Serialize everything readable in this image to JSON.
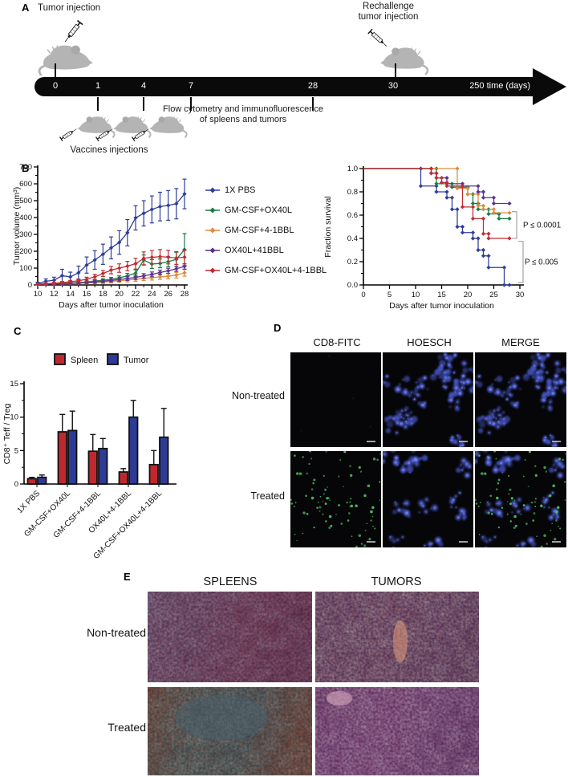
{
  "panel_a": {
    "label": "A",
    "tumor_injection": "Tumor injection",
    "rechallenge": [
      "Rechallenge",
      "tumor injection"
    ],
    "vaccines": "Vaccines injections",
    "flow": [
      "Flow cytometry and immunofluorescence",
      "of spleens and tumors"
    ],
    "timeline": {
      "ticks": [
        "0",
        "1",
        "4",
        "7",
        "28",
        "30"
      ],
      "end": "250 time (days)"
    }
  },
  "panel_b": {
    "label": "B"
  },
  "panel_c": {
    "label": "C"
  },
  "panel_d": {
    "label": "D",
    "columns": [
      "CD8-FITC",
      "HOESCH",
      "MERGE"
    ],
    "rows": [
      "Non-treated",
      "Treated"
    ],
    "colors": {
      "background": "#060608",
      "nuclei_blue": "#4656c8",
      "fitc_green": "#4fbf63",
      "scalebar": "#bdbdbd"
    }
  },
  "panel_e": {
    "label": "E",
    "columns": [
      "SPLEENS",
      "TUMORS"
    ],
    "rows": [
      "Non-treated",
      "Treated"
    ],
    "palettes": {
      "spleen_nontreated": {
        "base": [
          "#857a92",
          "#7b5f77",
          "#84465c",
          "#6e3148"
        ],
        "fine": "#2f1d3e",
        "coarse": "#cabbd2",
        "accent": "#9c3040"
      },
      "tumor_nontreated": {
        "base": [
          "#6b3e6d",
          "#7a4573",
          "#5c3263"
        ],
        "fine": "#2a1438",
        "coarse": "#cfd4dc",
        "accent": "#e09a78"
      },
      "spleen_treated": {
        "base": [
          "#8a3d2c",
          "#566a6d",
          "#49616a",
          "#8a3a2c"
        ],
        "fine": "#1f3238",
        "coarse": "#b9c4c2",
        "accent": "#9e3b1c"
      },
      "tumor_treated": {
        "base": [
          "#7e4a7c",
          "#8f5585",
          "#643a68"
        ],
        "fine": "#331341",
        "coarse": "#ead9e6",
        "accent": "#c77ba0"
      }
    }
  },
  "chart_data": [
    {
      "id": "tumor_volume",
      "type": "line",
      "xlabel": "Days after tumor inoculation",
      "ylabel": "Tumor volume (mm³)",
      "xlim": [
        10,
        28
      ],
      "ylim": [
        0,
        700
      ],
      "xticks": [
        10,
        12,
        14,
        16,
        18,
        20,
        22,
        24,
        26,
        28
      ],
      "yticks": [
        0,
        100,
        200,
        300,
        400,
        500,
        600,
        700
      ],
      "x": [
        10,
        11,
        12,
        13,
        14,
        15,
        16,
        17,
        18,
        19,
        20,
        21,
        22,
        23,
        24,
        25,
        26,
        27,
        28
      ],
      "series": [
        {
          "name": "1X PBS",
          "color": "#2e3d99",
          "values": [
            8,
            22,
            28,
            55,
            48,
            72,
            118,
            148,
            182,
            220,
            252,
            310,
            398,
            425,
            448,
            465,
            472,
            482,
            540
          ],
          "errors": [
            8,
            14,
            18,
            38,
            28,
            40,
            48,
            55,
            60,
            65,
            70,
            78,
            72,
            75,
            80,
            85,
            88,
            90,
            88
          ]
        },
        {
          "name": "GM-CSF+OX40L",
          "color": "#197c45",
          "values": [
            4,
            5,
            7,
            9,
            11,
            14,
            18,
            23,
            28,
            34,
            42,
            54,
            70,
            148,
            124,
            128,
            138,
            152,
            210
          ],
          "errors": [
            2,
            2,
            3,
            4,
            4,
            5,
            7,
            8,
            9,
            11,
            12,
            15,
            20,
            30,
            26,
            26,
            30,
            42,
            95
          ]
        },
        {
          "name": "GM-CSF+4-1BBL",
          "color": "#dd8c3c",
          "values": [
            4,
            5,
            6,
            7,
            8,
            10,
            12,
            14,
            17,
            21,
            25,
            29,
            34,
            39,
            43,
            48,
            52,
            58,
            72
          ],
          "errors": [
            2,
            2,
            3,
            3,
            4,
            5,
            6,
            7,
            8,
            9,
            10,
            11,
            12,
            13,
            14,
            15,
            16,
            17,
            20
          ]
        },
        {
          "name": "OX40L+41BBL",
          "color": "#5c3191",
          "values": [
            4,
            5,
            6,
            8,
            9,
            12,
            15,
            18,
            22,
            27,
            32,
            38,
            45,
            54,
            63,
            74,
            84,
            96,
            110
          ],
          "errors": [
            2,
            2,
            3,
            3,
            4,
            5,
            6,
            7,
            8,
            9,
            10,
            11,
            12,
            13,
            14,
            14,
            15,
            15,
            16
          ]
        },
        {
          "name": "GM-CSF+OX40L+4-1BBL",
          "color": "#bf2c31",
          "values": [
            5,
            7,
            10,
            14,
            19,
            25,
            34,
            48,
            68,
            88,
            100,
            112,
            126,
            158,
            164,
            168,
            165,
            160,
            165
          ],
          "errors": [
            3,
            4,
            5,
            6,
            8,
            10,
            12,
            15,
            18,
            22,
            25,
            28,
            32,
            38,
            40,
            42,
            40,
            38,
            40
          ]
        }
      ]
    },
    {
      "id": "survival",
      "type": "line",
      "xlabel": "Days after tumor inoculation",
      "ylabel": "Fraction survival",
      "xlim": [
        0,
        30
      ],
      "ylim": [
        0.0,
        1.0
      ],
      "xticks": [
        0,
        5,
        10,
        15,
        20,
        25,
        30
      ],
      "yticks": [
        0.0,
        0.2,
        0.4,
        0.6,
        0.8,
        1.0
      ],
      "annotations": [
        "P ≤ 0.0001",
        "P ≤ 0.005"
      ],
      "series": [
        {
          "name": "1X PBS",
          "color": "#2e3d99",
          "steps": [
            [
              0,
              1
            ],
            [
              11,
              1
            ],
            [
              11,
              0.85
            ],
            [
              14,
              0.85
            ],
            [
              14,
              0.8
            ],
            [
              16,
              0.8
            ],
            [
              16,
              0.75
            ],
            [
              17,
              0.75
            ],
            [
              17,
              0.65
            ],
            [
              18,
              0.65
            ],
            [
              18,
              0.5
            ],
            [
              19,
              0.5
            ],
            [
              19,
              0.45
            ],
            [
              21,
              0.45
            ],
            [
              21,
              0.4
            ],
            [
              22,
              0.4
            ],
            [
              22,
              0.3
            ],
            [
              23,
              0.3
            ],
            [
              23,
              0.25
            ],
            [
              24,
              0.25
            ],
            [
              24,
              0.15
            ],
            [
              27,
              0.15
            ],
            [
              27,
              0.0
            ],
            [
              28,
              0.0
            ]
          ]
        },
        {
          "name": "GM-CSF+OX40L",
          "color": "#197c45",
          "steps": [
            [
              0,
              1
            ],
            [
              14,
              1
            ],
            [
              14,
              0.87
            ],
            [
              17,
              0.87
            ],
            [
              17,
              0.84
            ],
            [
              20,
              0.84
            ],
            [
              20,
              0.78
            ],
            [
              21,
              0.78
            ],
            [
              21,
              0.7
            ],
            [
              22,
              0.7
            ],
            [
              22,
              0.65
            ],
            [
              24,
              0.65
            ],
            [
              24,
              0.61
            ],
            [
              26,
              0.61
            ],
            [
              26,
              0.57
            ],
            [
              28,
              0.57
            ]
          ]
        },
        {
          "name": "GM-CSF+4-1BBL",
          "color": "#dd8c3c",
          "steps": [
            [
              0,
              1
            ],
            [
              18,
              1
            ],
            [
              18,
              0.83
            ],
            [
              20,
              0.83
            ],
            [
              20,
              0.78
            ],
            [
              22,
              0.78
            ],
            [
              22,
              0.68
            ],
            [
              23,
              0.68
            ],
            [
              23,
              0.65
            ],
            [
              25,
              0.65
            ],
            [
              25,
              0.62
            ],
            [
              28,
              0.62
            ]
          ]
        },
        {
          "name": "OX40L+41BBL",
          "color": "#5c3191",
          "steps": [
            [
              0,
              1
            ],
            [
              13,
              1
            ],
            [
              13,
              0.96
            ],
            [
              14,
              0.96
            ],
            [
              14,
              0.92
            ],
            [
              16,
              0.92
            ],
            [
              16,
              0.87
            ],
            [
              19,
              0.87
            ],
            [
              19,
              0.85
            ],
            [
              22,
              0.85
            ],
            [
              22,
              0.8
            ],
            [
              23,
              0.8
            ],
            [
              23,
              0.75
            ],
            [
              25,
              0.75
            ],
            [
              25,
              0.7
            ],
            [
              28,
              0.7
            ]
          ]
        },
        {
          "name": "GM-CSF+OX40L+4-1BBL",
          "color": "#bf2c31",
          "steps": [
            [
              0,
              1
            ],
            [
              13,
              1
            ],
            [
              13,
              0.96
            ],
            [
              14,
              0.96
            ],
            [
              14,
              0.92
            ],
            [
              15,
              0.92
            ],
            [
              15,
              0.88
            ],
            [
              16,
              0.88
            ],
            [
              16,
              0.85
            ],
            [
              19,
              0.85
            ],
            [
              19,
              0.67
            ],
            [
              21,
              0.67
            ],
            [
              21,
              0.57
            ],
            [
              23,
              0.57
            ],
            [
              23,
              0.44
            ],
            [
              24,
              0.44
            ],
            [
              24,
              0.4
            ],
            [
              28,
              0.4
            ]
          ]
        }
      ]
    },
    {
      "id": "cd8_teff_treg",
      "type": "bar",
      "ylabel": "CD8⁺ Teff / Treg",
      "ylim": [
        0,
        15
      ],
      "yticks": [
        0,
        5,
        10,
        15
      ],
      "categories": [
        "1X PBS",
        "GM-CSF+OX40L",
        "GM-CSF+4-1BBL",
        "OX40L+4-1BBL",
        "GM-CSF+OX40L+4-1BBL"
      ],
      "series": [
        {
          "name": "Spleen",
          "color": "#c02830",
          "values": [
            0.8,
            7.8,
            4.9,
            1.8,
            2.9
          ],
          "errors": [
            0.2,
            2.6,
            2.5,
            0.5,
            2.1
          ]
        },
        {
          "name": "Tumor",
          "color": "#2d3b94",
          "values": [
            1.0,
            8.0,
            5.3,
            10.0,
            7.0
          ],
          "errors": [
            0.35,
            2.9,
            1.5,
            2.5,
            4.3
          ]
        }
      ],
      "legend_position": "top"
    }
  ]
}
